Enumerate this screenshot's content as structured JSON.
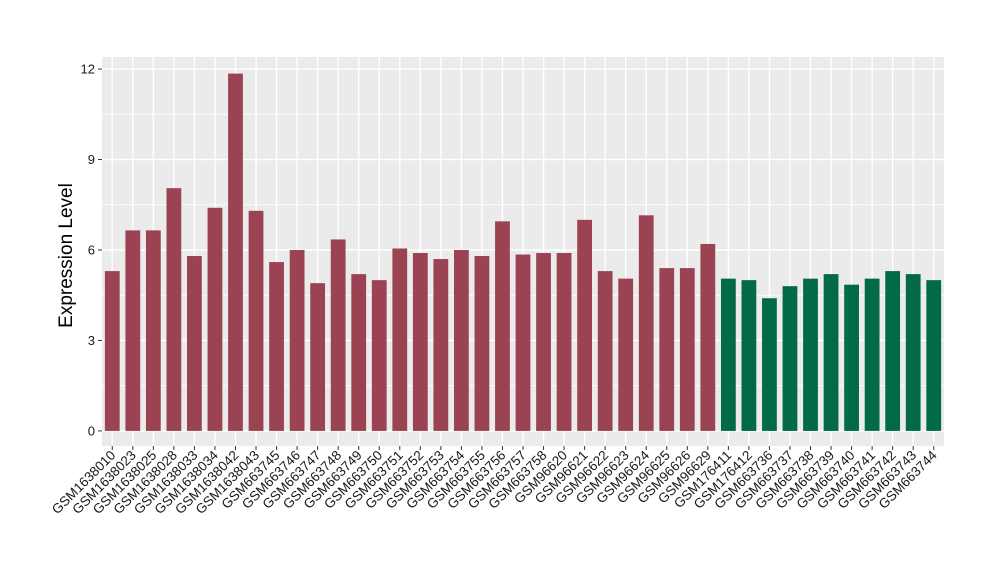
{
  "chart_data": {
    "type": "bar",
    "title": "",
    "xlabel": "",
    "ylabel": "Expression Level",
    "ylim": [
      -0.5,
      12.4
    ],
    "yticks": [
      0,
      3,
      6,
      9,
      12
    ],
    "grid": true,
    "legend": "none",
    "categories": [
      "GSM1638010",
      "GSM1638023",
      "GSM1638025",
      "GSM1638028",
      "GSM1638033",
      "GSM1638034",
      "GSM1638042",
      "GSM1638043",
      "GSM663745",
      "GSM663746",
      "GSM663747",
      "GSM663748",
      "GSM663749",
      "GSM663750",
      "GSM663751",
      "GSM663752",
      "GSM663753",
      "GSM663754",
      "GSM663755",
      "GSM663756",
      "GSM663757",
      "GSM663758",
      "GSM96620",
      "GSM96621",
      "GSM96622",
      "GSM96623",
      "GSM96624",
      "GSM96625",
      "GSM96626",
      "GSM96629",
      "GSM176411",
      "GSM176412",
      "GSM663736",
      "GSM663737",
      "GSM663738",
      "GSM663739",
      "GSM663740",
      "GSM663741",
      "GSM663742",
      "GSM663743",
      "GSM663744"
    ],
    "values": [
      5.3,
      6.65,
      6.65,
      8.05,
      5.8,
      7.4,
      11.85,
      7.3,
      5.6,
      6.0,
      4.9,
      6.35,
      5.2,
      5.0,
      6.05,
      5.9,
      5.7,
      6.0,
      5.8,
      6.95,
      5.85,
      5.9,
      5.9,
      7.0,
      5.3,
      5.05,
      7.15,
      5.4,
      5.4,
      6.2,
      5.05,
      5.0,
      4.4,
      4.8,
      5.05,
      5.2,
      4.85,
      5.05,
      5.3,
      5.2,
      5.0
    ],
    "group_colors": [
      "#9b4352",
      "#9b4352",
      "#9b4352",
      "#9b4352",
      "#9b4352",
      "#9b4352",
      "#9b4352",
      "#9b4352",
      "#9b4352",
      "#9b4352",
      "#9b4352",
      "#9b4352",
      "#9b4352",
      "#9b4352",
      "#9b4352",
      "#9b4352",
      "#9b4352",
      "#9b4352",
      "#9b4352",
      "#9b4352",
      "#9b4352",
      "#9b4352",
      "#9b4352",
      "#9b4352",
      "#9b4352",
      "#9b4352",
      "#9b4352",
      "#9b4352",
      "#9b4352",
      "#9b4352",
      "#036a47",
      "#036a47",
      "#036a47",
      "#036a47",
      "#036a47",
      "#036a47",
      "#036a47",
      "#036a47",
      "#036a47",
      "#036a47",
      "#036a47"
    ],
    "panel_background": "#ebebeb",
    "grid_color": "#ffffff"
  }
}
